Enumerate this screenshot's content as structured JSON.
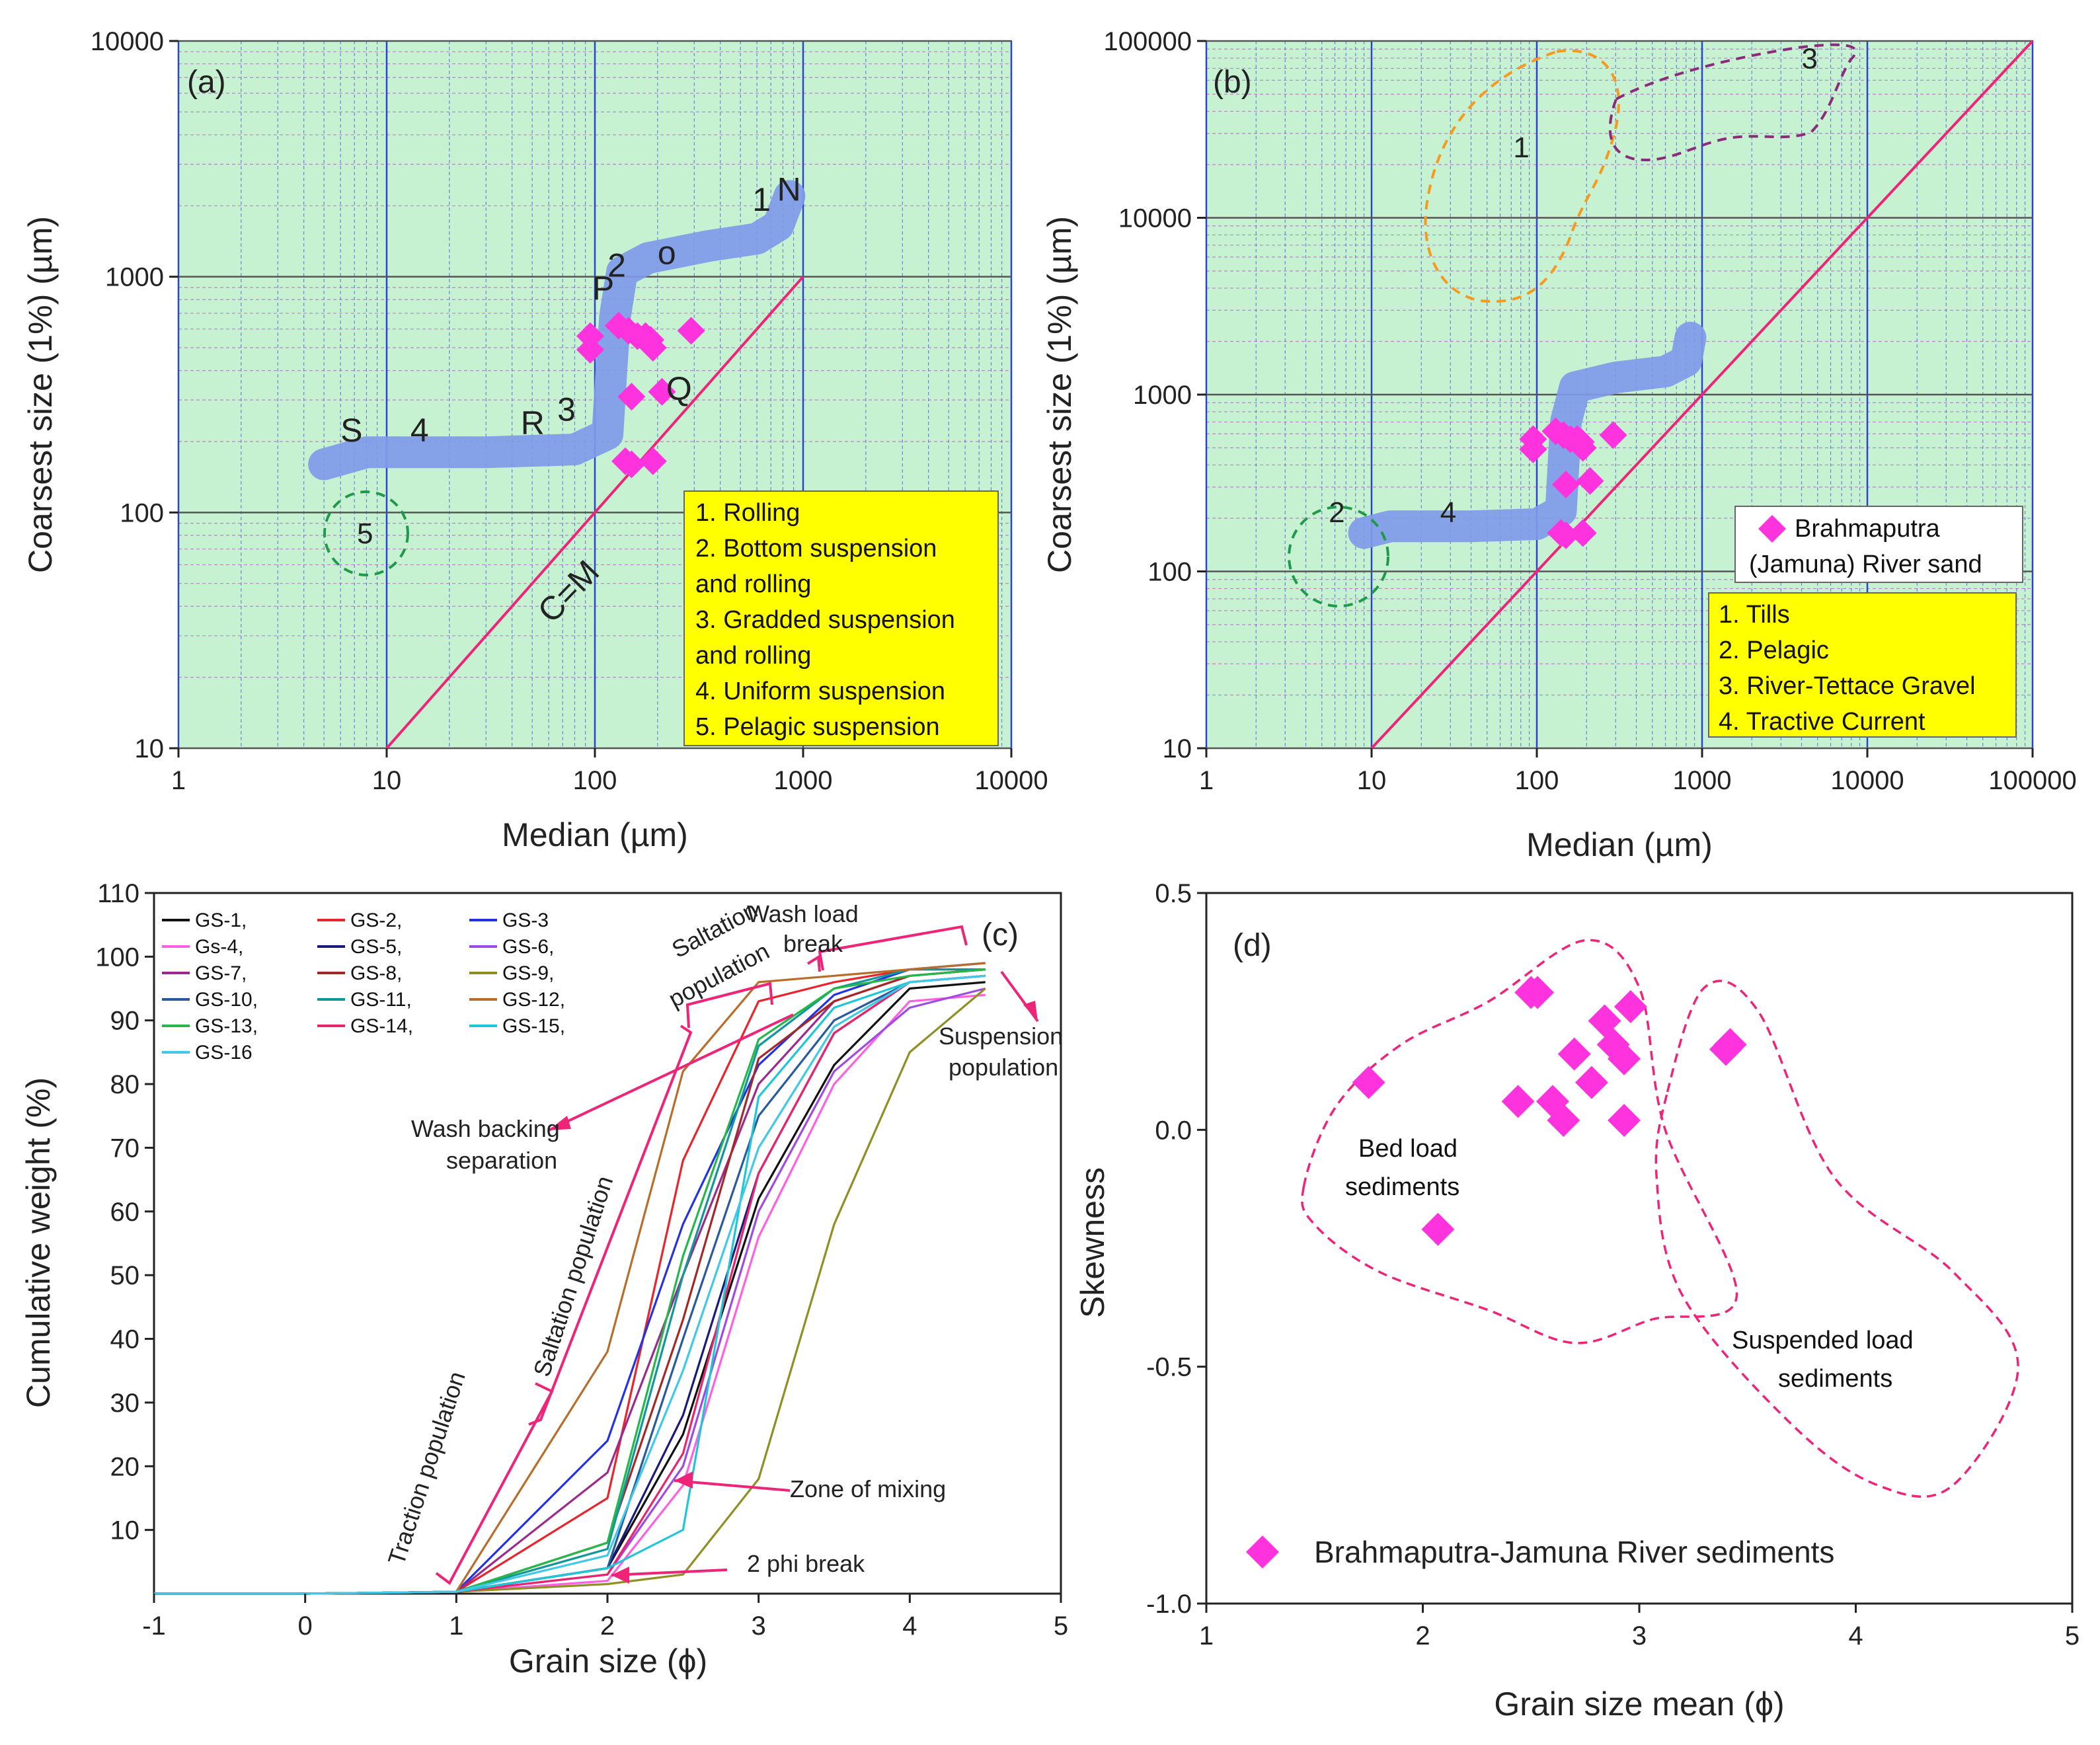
{
  "chart_data": [
    {
      "panel": "a",
      "type": "scatter",
      "tag": "(a)",
      "xlabel": "Median (µm)",
      "ylabel": "Coarsest size (1%) (µm)",
      "xscale": "log",
      "yscale": "log",
      "xlim": [
        1,
        10000
      ],
      "ylim": [
        10,
        10000
      ],
      "xticks": [
        1,
        10,
        100,
        1000,
        10000
      ],
      "xtick_labels": [
        "1",
        "10",
        "100",
        "1000",
        "10000"
      ],
      "yticks": [
        10,
        100,
        1000,
        10000
      ],
      "ytick_labels": [
        "10",
        "100",
        "1000",
        "10000"
      ],
      "background": "#c6f2d2",
      "points": [
        [
          95,
          560
        ],
        [
          95,
          490
        ],
        [
          130,
          620
        ],
        [
          145,
          590
        ],
        [
          160,
          560
        ],
        [
          175,
          560
        ],
        [
          190,
          500
        ],
        [
          185,
          540
        ],
        [
          290,
          590
        ],
        [
          150,
          310
        ],
        [
          210,
          325
        ],
        [
          140,
          165
        ],
        [
          150,
          160
        ],
        [
          190,
          165
        ]
      ],
      "band": [
        [
          5,
          160
        ],
        [
          8,
          180
        ],
        [
          30,
          180
        ],
        [
          80,
          185
        ],
        [
          115,
          215
        ],
        [
          120,
          400
        ],
        [
          125,
          680
        ],
        [
          135,
          1050
        ],
        [
          180,
          1200
        ],
        [
          350,
          1350
        ],
        [
          600,
          1450
        ],
        [
          760,
          1650
        ],
        [
          860,
          2200
        ]
      ],
      "equality_line": {
        "label": "C=M",
        "from": [
          10,
          10
        ],
        "to": [
          1000,
          1000
        ]
      },
      "letters": [
        {
          "text": "S",
          "x": 6,
          "y": 200
        },
        {
          "text": "4",
          "x": 13,
          "y": 200
        },
        {
          "text": "R",
          "x": 44,
          "y": 215
        },
        {
          "text": "3",
          "x": 66,
          "y": 245
        },
        {
          "text": "P",
          "x": 97,
          "y": 800
        },
        {
          "text": "2",
          "x": 115,
          "y": 1000
        },
        {
          "text": "o",
          "x": 200,
          "y": 1130
        },
        {
          "text": "1",
          "x": 570,
          "y": 1900
        },
        {
          "text": "N",
          "x": 750,
          "y": 2100
        },
        {
          "text": "Q",
          "x": 220,
          "y": 300
        }
      ],
      "circle": {
        "label": "5",
        "cx": 8.5,
        "cy": 78
      },
      "legend": [
        "1. Rolling",
        "2. Bottom suspension",
        "and rolling",
        "3. Gradded suspension",
        "and rolling",
        "4. Uniform suspension",
        "5. Pelagic suspension"
      ]
    },
    {
      "panel": "b",
      "type": "scatter",
      "tag": "(b)",
      "xlabel": "Median (µm)",
      "ylabel": "Coarsest size (1%) (µm)",
      "xscale": "log",
      "yscale": "log",
      "xlim": [
        1,
        100000
      ],
      "ylim": [
        10,
        100000
      ],
      "xticks": [
        1,
        10,
        100,
        1000,
        10000,
        100000
      ],
      "xtick_labels": [
        "1",
        "10",
        "100",
        "1000",
        "10000",
        "100000"
      ],
      "yticks": [
        10,
        100,
        1000,
        10000,
        100000
      ],
      "ytick_labels": [
        "10",
        "100",
        "1000",
        "10000",
        "100000"
      ],
      "background": "#c6f2d2",
      "points": [
        [
          95,
          560
        ],
        [
          95,
          490
        ],
        [
          130,
          620
        ],
        [
          145,
          590
        ],
        [
          160,
          560
        ],
        [
          175,
          560
        ],
        [
          190,
          500
        ],
        [
          185,
          540
        ],
        [
          290,
          590
        ],
        [
          150,
          310
        ],
        [
          210,
          325
        ],
        [
          140,
          165
        ],
        [
          150,
          160
        ],
        [
          190,
          165
        ]
      ],
      "band": [
        [
          9,
          165
        ],
        [
          13,
          180
        ],
        [
          40,
          180
        ],
        [
          100,
          185
        ],
        [
          140,
          220
        ],
        [
          145,
          400
        ],
        [
          150,
          700
        ],
        [
          170,
          1100
        ],
        [
          300,
          1250
        ],
        [
          600,
          1350
        ],
        [
          800,
          1550
        ],
        [
          850,
          2100
        ]
      ],
      "equality_line": {
        "from": [
          10,
          10
        ],
        "to": [
          100000,
          100000
        ]
      },
      "region_labels": [
        {
          "text": "1",
          "x": 72,
          "y": 22000
        },
        {
          "text": "2",
          "x": 5.5,
          "y": 190
        },
        {
          "text": "3",
          "x": 4000,
          "y": 70000
        },
        {
          "text": "4",
          "x": 26,
          "y": 190
        }
      ],
      "species_legend": {
        "marker_label_1": "Brahmaputra",
        "marker_label_2": "(Jamuna) River sand"
      },
      "legend": [
        "1. Tills",
        "2. Pelagic",
        "3. River-Tettace Gravel",
        "4. Tractive Current"
      ]
    },
    {
      "panel": "c",
      "type": "line",
      "tag": "(c)",
      "xlabel": "Grain size (ϕ)",
      "ylabel": "Cumulative weight (%)",
      "xlim": [
        -1,
        5
      ],
      "ylim": [
        0,
        110
      ],
      "xticks": [
        -1,
        0,
        1,
        2,
        3,
        4,
        5
      ],
      "xtick_labels": [
        "-1",
        "0",
        "1",
        "2",
        "3",
        "4",
        "5"
      ],
      "yticks": [
        10,
        20,
        30,
        40,
        50,
        60,
        70,
        80,
        90,
        100,
        110
      ],
      "ytick_labels": [
        "10",
        "20",
        "30",
        "40",
        "50",
        "60",
        "70",
        "80",
        "90",
        "100",
        "110"
      ],
      "x": [
        -1,
        0,
        1,
        2,
        2.5,
        3,
        3.5,
        4,
        4.5
      ],
      "series": [
        {
          "name": "GS-1,",
          "color": "#111111",
          "values": [
            0,
            0,
            0.3,
            4,
            25,
            62,
            83,
            95,
            96
          ]
        },
        {
          "name": "GS-2,",
          "color": "#e8242c",
          "values": [
            0,
            0,
            0.3,
            15,
            68,
            93,
            96,
            98,
            98
          ]
        },
        {
          "name": "GS-3",
          "color": "#2432e6",
          "values": [
            0,
            0,
            0.3,
            24,
            58,
            83,
            94,
            98,
            99
          ]
        },
        {
          "name": "Gs-4,",
          "color": "#ff5fe0",
          "values": [
            0,
            0,
            0.3,
            2,
            17,
            56,
            80,
            93,
            94
          ]
        },
        {
          "name": "GS-5,",
          "color": "#1a1a7a",
          "values": [
            0,
            0,
            0.3,
            4,
            28,
            66,
            88,
            96,
            97
          ]
        },
        {
          "name": "GS-6,",
          "color": "#a04ae6",
          "values": [
            0,
            0,
            0.3,
            3,
            20,
            60,
            82,
            92,
            95
          ]
        },
        {
          "name": "GS-7,",
          "color": "#9b2a8e",
          "values": [
            0,
            0,
            0.3,
            19,
            50,
            80,
            93,
            97,
            98
          ]
        },
        {
          "name": "GS-8,",
          "color": "#a52828",
          "values": [
            0,
            0,
            0.3,
            8,
            43,
            84,
            93,
            97,
            98
          ]
        },
        {
          "name": "GS-9,",
          "color": "#8f8f24",
          "values": [
            0,
            0,
            0.3,
            1.5,
            3,
            18,
            58,
            85,
            95
          ]
        },
        {
          "name": "GS-10,",
          "color": "#2a5a9e",
          "values": [
            0,
            0,
            0.3,
            4,
            40,
            75,
            90,
            96,
            97
          ]
        },
        {
          "name": "GS-11,",
          "color": "#10979a",
          "values": [
            0,
            0,
            0.3,
            7,
            50,
            86,
            95,
            98,
            98
          ]
        },
        {
          "name": "GS-12,",
          "color": "#b86d2a",
          "values": [
            0,
            0,
            0.3,
            38,
            82,
            96,
            97,
            98,
            99
          ]
        },
        {
          "name": "GS-13,",
          "color": "#24b84a",
          "values": [
            0,
            0,
            0.3,
            8,
            53,
            87,
            95,
            97,
            98
          ]
        },
        {
          "name": "GS-14,",
          "color": "#e8246e",
          "values": [
            0,
            0,
            0.3,
            3,
            22,
            66,
            88,
            96,
            97
          ]
        },
        {
          "name": "GS-15,",
          "color": "#1ec7d8",
          "values": [
            0,
            0,
            0.3,
            4,
            10,
            78,
            92,
            96,
            97
          ]
        },
        {
          "name": "GS-16",
          "color": "#40c8e8",
          "values": [
            0,
            0,
            0.3,
            6,
            35,
            70,
            89,
            96,
            97
          ]
        }
      ],
      "annotations": {
        "traction": "Traction population",
        "saltation_rot": "Saltation population",
        "saltation_1": "Saltation",
        "saltation_2": "population",
        "washload_1": "Wash load",
        "washload_2": "break",
        "suspension_1": "Suspension",
        "suspension_2": "population",
        "washbacking_1": "Wash backing",
        "washbacking_2": "separation",
        "mixing": "Zone of mixing",
        "phibreak": "2 phi break"
      }
    },
    {
      "panel": "d",
      "type": "scatter",
      "tag": "(d)",
      "xlabel": "Grain size mean (ϕ)",
      "ylabel": "Skewness",
      "xlim": [
        1,
        5
      ],
      "ylim": [
        -1.0,
        0.5
      ],
      "xticks": [
        1,
        2,
        3,
        4,
        5
      ],
      "xtick_labels": [
        "1",
        "2",
        "3",
        "4",
        "5"
      ],
      "yticks": [
        -1.0,
        -0.5,
        0.0,
        0.5
      ],
      "ytick_labels": [
        "-1.0",
        "-0.5",
        "0.0",
        "0.5"
      ],
      "points": [
        [
          2.5,
          0.29
        ],
        [
          2.53,
          0.29
        ],
        [
          2.96,
          0.26
        ],
        [
          2.84,
          0.23
        ],
        [
          2.7,
          0.16
        ],
        [
          2.88,
          0.18
        ],
        [
          2.93,
          0.15
        ],
        [
          1.75,
          0.1
        ],
        [
          2.78,
          0.1
        ],
        [
          2.44,
          0.06
        ],
        [
          2.6,
          0.06
        ],
        [
          2.65,
          0.02
        ],
        [
          2.93,
          0.02
        ],
        [
          3.42,
          0.18
        ],
        [
          3.4,
          0.17
        ],
        [
          2.07,
          -0.21
        ]
      ],
      "bed_region": [
        [
          1.45,
          -0.12
        ],
        [
          1.6,
          0.05
        ],
        [
          1.9,
          0.18
        ],
        [
          2.3,
          0.27
        ],
        [
          2.75,
          0.4
        ],
        [
          3.0,
          0.3
        ],
        [
          3.12,
          0.0
        ],
        [
          3.45,
          -0.35
        ],
        [
          3.06,
          -0.4
        ],
        [
          2.7,
          -0.45
        ],
        [
          2.3,
          -0.38
        ],
        [
          1.8,
          -0.3
        ],
        [
          1.5,
          -0.2
        ]
      ],
      "suspended_region": [
        [
          3.13,
          0.08
        ],
        [
          3.3,
          0.3
        ],
        [
          3.55,
          0.25
        ],
        [
          3.9,
          -0.1
        ],
        [
          4.45,
          -0.3
        ],
        [
          4.75,
          -0.5
        ],
        [
          4.45,
          -0.75
        ],
        [
          4.1,
          -0.75
        ],
        [
          3.7,
          -0.62
        ],
        [
          3.2,
          -0.35
        ],
        [
          3.08,
          -0.1
        ]
      ],
      "region_labels": {
        "bed_1": "Bed load",
        "bed_2": "sediments",
        "susp_1": "Suspended load",
        "susp_2": "sediments"
      },
      "legend": "Brahmaputra-Jamuna River sediments"
    }
  ],
  "colors": {
    "pink": "#ff33dd",
    "band": "#7f9ae8",
    "line": "#ee2478",
    "green_dash": "#1f9a4a",
    "legend_box": "#ffff00"
  }
}
